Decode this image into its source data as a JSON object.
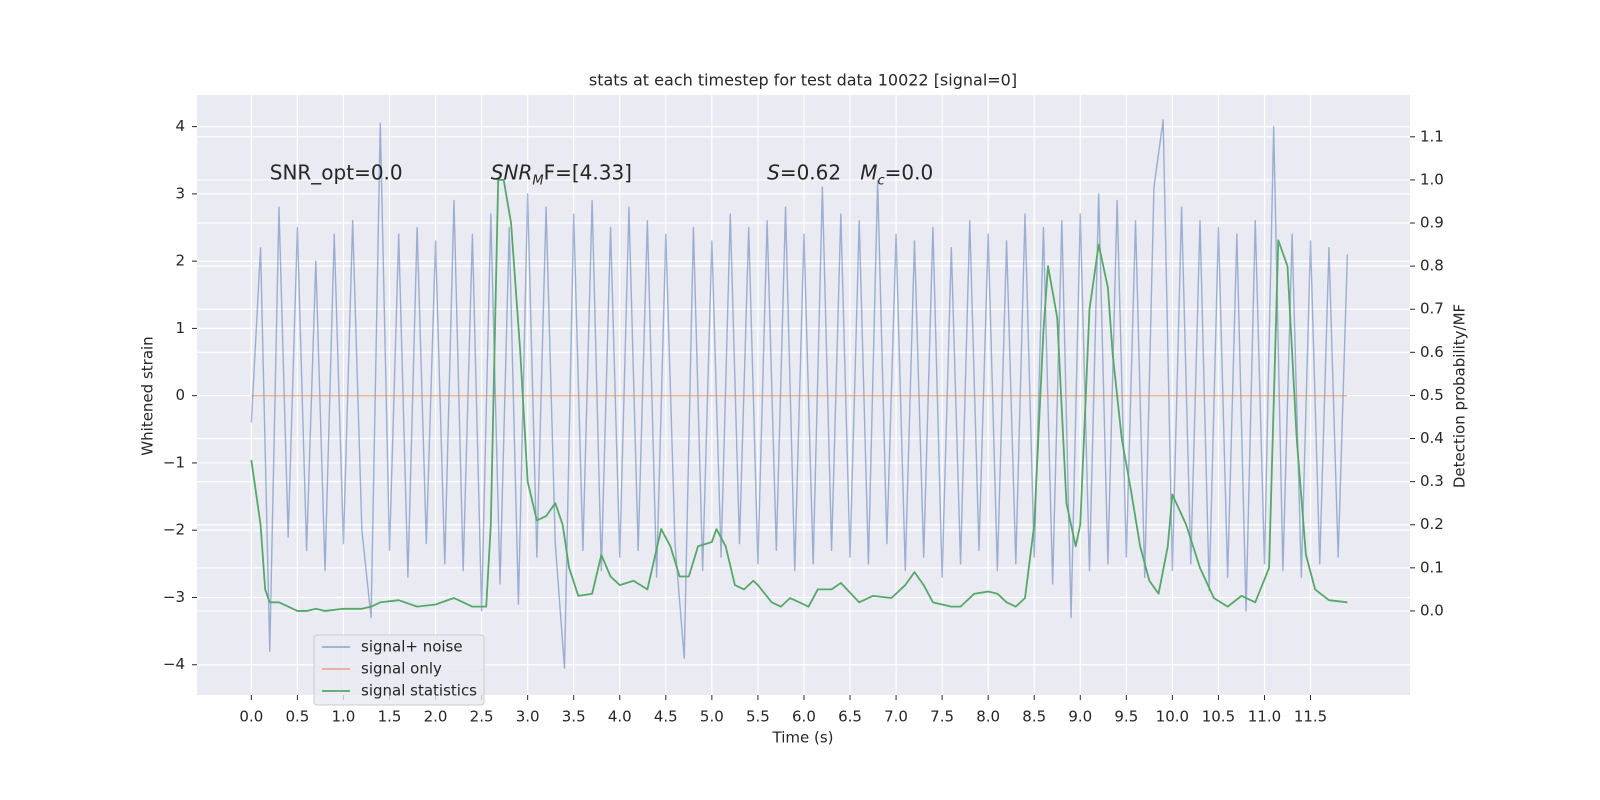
{
  "chart_data": {
    "type": "line",
    "title": "stats at each timestep for test data 10022 [signal=0]",
    "xlabel": "Time (s)",
    "ylabel": "Whitened strain",
    "y2label": "Detection probability/MF",
    "xlim": [
      -0.59,
      12.58
    ],
    "ylim": [
      -4.45,
      4.47
    ],
    "y2lim": [
      -0.195,
      1.197
    ],
    "xticks": [
      {
        "value": 0,
        "label": "0.0"
      },
      0.5,
      {
        "value": 1,
        "label": "1.0"
      },
      1.5,
      {
        "value": 2,
        "label": "2.0"
      },
      2.5,
      {
        "value": 3,
        "label": "3.0"
      },
      3.5,
      {
        "value": 4,
        "label": "4.0"
      },
      4.5,
      {
        "value": 5,
        "label": "5.0"
      },
      5.5,
      {
        "value": 6,
        "label": "6.0"
      },
      6.5,
      {
        "value": 7,
        "label": "7.0"
      },
      7.5,
      {
        "value": 8,
        "label": "8.0"
      },
      8.5,
      {
        "value": 9,
        "label": "9.0"
      },
      9.5,
      {
        "value": 10,
        "label": "10.0"
      },
      10.5,
      {
        "value": 11,
        "label": "11.0"
      },
      11.5
    ],
    "yticks": [
      -4,
      -3,
      -2,
      -1,
      0,
      1,
      2,
      3,
      4
    ],
    "y2ticks": [
      {
        "value": 0,
        "label": "0.0"
      },
      0.1,
      0.2,
      0.3,
      0.4,
      0.5,
      0.6,
      0.7,
      0.8,
      0.9,
      {
        "value": 1,
        "label": "1.0"
      },
      1.1
    ],
    "grid": true,
    "legend": "lower left",
    "annotations": [
      {
        "parts": [
          {
            "text": "SNR_opt=0.0",
            "style": "normal"
          }
        ],
        "x": 0.2,
        "y": 3.3
      },
      {
        "parts": [
          {
            "text": "SNR",
            "style": "italic"
          },
          {
            "text": "M",
            "style": "sub"
          },
          {
            "text": "F=[4.33]",
            "style": "normal"
          }
        ],
        "x": 2.6,
        "y": 3.3
      },
      {
        "parts": [
          {
            "text": "S",
            "style": "italic"
          },
          {
            "text": "=0.62   ",
            "style": "normal"
          },
          {
            "text": "M",
            "style": "italic"
          },
          {
            "text": "c",
            "style": "sub"
          },
          {
            "text": "=0.0",
            "style": "normal"
          }
        ],
        "x": 5.6,
        "y": 3.3
      }
    ],
    "series": [
      {
        "name": "signal+ noise",
        "color": "#4c72b0",
        "opacity": 0.5,
        "x": [
          0,
          0.1,
          0.2,
          0.3,
          0.4,
          0.5,
          0.6,
          0.7,
          0.8,
          0.9,
          1,
          1.1,
          1.2,
          1.3,
          1.4,
          1.5,
          1.6,
          1.7,
          1.8,
          1.9,
          2,
          2.1,
          2.2,
          2.3,
          2.4,
          2.5,
          2.6,
          2.7,
          2.8,
          2.9,
          3,
          3.1,
          3.2,
          3.3,
          3.4,
          3.5,
          3.6,
          3.7,
          3.8,
          3.9,
          4,
          4.1,
          4.2,
          4.3,
          4.4,
          4.5,
          4.6,
          4.7,
          4.8,
          4.9,
          5,
          5.1,
          5.2,
          5.3,
          5.4,
          5.5,
          5.6,
          5.7,
          5.8,
          5.9,
          6,
          6.1,
          6.2,
          6.3,
          6.4,
          6.5,
          6.6,
          6.7,
          6.8,
          6.9,
          7,
          7.1,
          7.2,
          7.3,
          7.4,
          7.5,
          7.6,
          7.7,
          7.8,
          7.9,
          8,
          8.1,
          8.2,
          8.3,
          8.4,
          8.5,
          8.6,
          8.7,
          8.8,
          8.9,
          9,
          9.1,
          9.2,
          9.3,
          9.4,
          9.5,
          9.6,
          9.7,
          9.8,
          9.9,
          10,
          10.1,
          10.2,
          10.3,
          10.4,
          10.5,
          10.6,
          10.7,
          10.8,
          10.9,
          11,
          11.1,
          11.2,
          11.3,
          11.4,
          11.5,
          11.6,
          11.7,
          11.8,
          11.9
        ],
        "values": [
          -0.4,
          2.2,
          -3.8,
          2.8,
          -2.1,
          2.5,
          -2.3,
          2.0,
          -2.6,
          2.4,
          -2.2,
          2.6,
          -2.0,
          -3.3,
          4.05,
          -2.3,
          2.4,
          -2.7,
          2.5,
          -2.2,
          2.3,
          -2.5,
          2.9,
          -2.6,
          2.4,
          -3.2,
          2.7,
          -2.8,
          2.5,
          -3.1,
          3.0,
          -2.4,
          2.8,
          -2.2,
          -4.05,
          2.7,
          -2.3,
          2.9,
          -2.6,
          2.5,
          -2.4,
          2.8,
          -2.3,
          2.6,
          -2.7,
          2.4,
          -2.2,
          -3.9,
          2.5,
          -2.6,
          2.3,
          -2.4,
          2.7,
          -2.2,
          2.5,
          -2.5,
          2.6,
          -2.3,
          2.8,
          -2.6,
          2.4,
          -2.5,
          3.1,
          -2.3,
          2.7,
          -2.4,
          2.6,
          -2.5,
          3.2,
          -2.2,
          2.4,
          -2.6,
          2.3,
          -2.4,
          2.5,
          -2.7,
          2.2,
          -2.5,
          2.6,
          -2.3,
          2.4,
          -2.6,
          2.3,
          -2.5,
          2.7,
          -2.4,
          2.5,
          -2.8,
          2.6,
          -3.3,
          2.7,
          -2.6,
          3.0,
          -2.5,
          2.9,
          -2.4,
          2.6,
          -2.7,
          3.1,
          4.1,
          -2.6,
          2.8,
          -2.5,
          2.6,
          -2.9,
          2.5,
          -2.7,
          2.4,
          -3.2,
          2.6,
          -2.5,
          4.0,
          -2.6,
          2.4,
          -2.7,
          2.3,
          -2.5,
          2.2,
          -2.4,
          2.1
        ]
      },
      {
        "name": "signal only",
        "color": "#dd8452",
        "opacity": 0.6,
        "x": [
          0,
          11.9
        ],
        "values": [
          0,
          0
        ]
      },
      {
        "name": "signal statistics",
        "color": "#55a868",
        "opacity": 1,
        "axis": "y2",
        "x": [
          0,
          0.1,
          0.15,
          0.2,
          0.3,
          0.35,
          0.5,
          0.6,
          0.7,
          0.8,
          1.0,
          1.2,
          1.3,
          1.4,
          1.6,
          1.8,
          2.0,
          2.2,
          2.3,
          2.4,
          2.55,
          2.6,
          2.68,
          2.74,
          2.82,
          2.92,
          3.0,
          3.1,
          3.2,
          3.3,
          3.38,
          3.45,
          3.55,
          3.7,
          3.8,
          3.9,
          4.0,
          4.15,
          4.3,
          4.45,
          4.55,
          4.65,
          4.75,
          4.85,
          5.0,
          5.05,
          5.15,
          5.25,
          5.35,
          5.45,
          5.5,
          5.65,
          5.75,
          5.85,
          5.95,
          6.05,
          6.15,
          6.3,
          6.4,
          6.6,
          6.75,
          6.95,
          7.1,
          7.2,
          7.3,
          7.4,
          7.6,
          7.7,
          7.85,
          8.0,
          8.1,
          8.2,
          8.3,
          8.4,
          8.5,
          8.6,
          8.65,
          8.75,
          8.85,
          8.95,
          9.0,
          9.1,
          9.2,
          9.3,
          9.35,
          9.45,
          9.55,
          9.65,
          9.75,
          9.85,
          9.95,
          10.0,
          10.15,
          10.3,
          10.45,
          10.6,
          10.75,
          10.9,
          11.05,
          11.15,
          11.25,
          11.35,
          11.45,
          11.55,
          11.7,
          11.9
        ],
        "values": [
          0.35,
          0.2,
          0.05,
          0.02,
          0.02,
          0.015,
          0.0,
          0.0,
          0.005,
          0.0,
          0.005,
          0.005,
          0.01,
          0.02,
          0.025,
          0.01,
          0.015,
          0.03,
          0.02,
          0.01,
          0.01,
          0.2,
          1.0,
          1.0,
          0.9,
          0.6,
          0.3,
          0.21,
          0.22,
          0.25,
          0.2,
          0.1,
          0.035,
          0.04,
          0.13,
          0.08,
          0.06,
          0.07,
          0.05,
          0.19,
          0.15,
          0.08,
          0.08,
          0.15,
          0.16,
          0.19,
          0.15,
          0.06,
          0.05,
          0.07,
          0.06,
          0.02,
          0.01,
          0.03,
          0.02,
          0.01,
          0.05,
          0.05,
          0.065,
          0.02,
          0.035,
          0.03,
          0.06,
          0.09,
          0.06,
          0.02,
          0.01,
          0.01,
          0.04,
          0.045,
          0.04,
          0.02,
          0.01,
          0.03,
          0.2,
          0.65,
          0.8,
          0.68,
          0.25,
          0.15,
          0.2,
          0.7,
          0.85,
          0.75,
          0.6,
          0.4,
          0.28,
          0.15,
          0.07,
          0.04,
          0.15,
          0.27,
          0.2,
          0.1,
          0.03,
          0.01,
          0.035,
          0.02,
          0.1,
          0.86,
          0.8,
          0.4,
          0.13,
          0.05,
          0.025,
          0.02
        ]
      }
    ]
  }
}
